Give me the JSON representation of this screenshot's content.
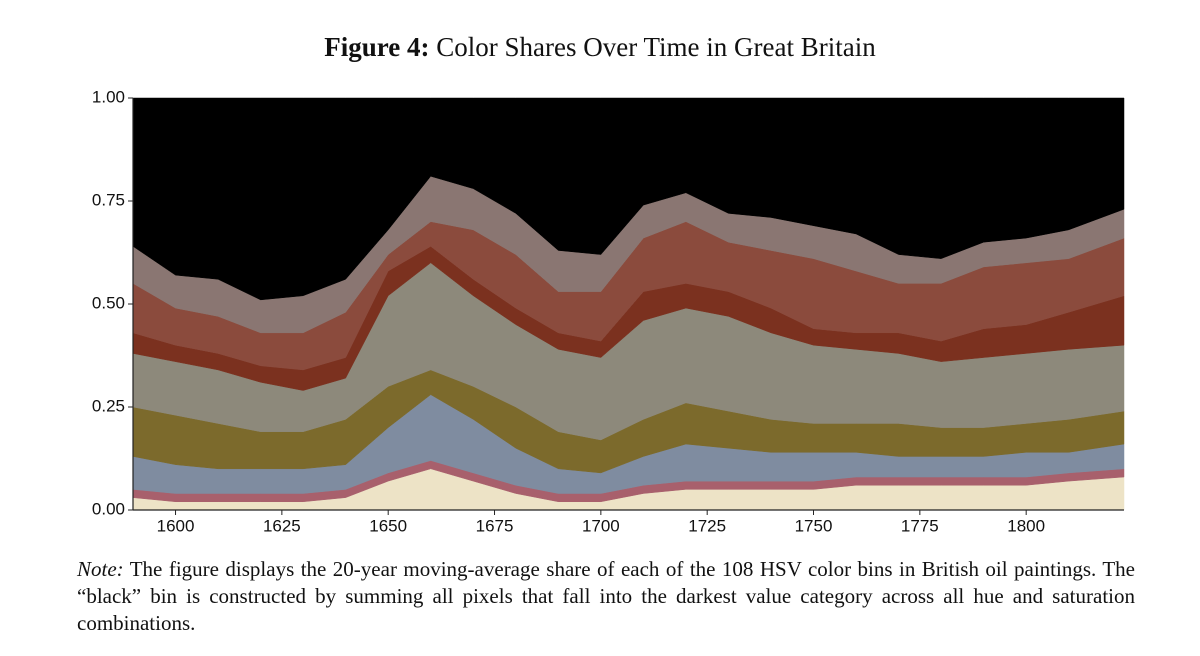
{
  "chart_data": {
    "type": "stacked_area",
    "title_label": "Figure 4:",
    "title": "Color Shares Over Time in Great Britain",
    "x": [
      1590,
      1600,
      1610,
      1620,
      1630,
      1640,
      1650,
      1660,
      1670,
      1680,
      1690,
      1700,
      1710,
      1720,
      1730,
      1740,
      1750,
      1760,
      1770,
      1780,
      1790,
      1800,
      1810,
      1823
    ],
    "xlim": [
      1590,
      1823
    ],
    "xticks": [
      1600,
      1625,
      1650,
      1675,
      1700,
      1725,
      1750,
      1775,
      1800
    ],
    "ylim": [
      0,
      1
    ],
    "yticks": [
      {
        "value": 0,
        "label": "0.00"
      },
      {
        "value": 0.25,
        "label": "0.25"
      },
      {
        "value": 0.5,
        "label": "0.50"
      },
      {
        "value": 0.75,
        "label": "0.75"
      },
      {
        "value": 1,
        "label": "1.00"
      }
    ],
    "series": [
      {
        "color": "#ede3c6",
        "values": [
          0.03,
          0.02,
          0.02,
          0.02,
          0.02,
          0.03,
          0.07,
          0.1,
          0.07,
          0.04,
          0.02,
          0.02,
          0.04,
          0.05,
          0.05,
          0.05,
          0.05,
          0.06,
          0.06,
          0.06,
          0.06,
          0.06,
          0.07,
          0.08
        ]
      },
      {
        "color": "#a8606c",
        "values": [
          0.02,
          0.02,
          0.02,
          0.02,
          0.02,
          0.02,
          0.02,
          0.02,
          0.02,
          0.02,
          0.02,
          0.02,
          0.02,
          0.02,
          0.02,
          0.02,
          0.02,
          0.02,
          0.02,
          0.02,
          0.02,
          0.02,
          0.02,
          0.02
        ]
      },
      {
        "color": "#7f8ca0",
        "values": [
          0.08,
          0.07,
          0.06,
          0.06,
          0.06,
          0.06,
          0.11,
          0.16,
          0.13,
          0.09,
          0.06,
          0.05,
          0.07,
          0.09,
          0.08,
          0.07,
          0.07,
          0.06,
          0.05,
          0.05,
          0.05,
          0.06,
          0.05,
          0.06
        ]
      },
      {
        "color": "#7c6a2c",
        "values": [
          0.12,
          0.12,
          0.11,
          0.09,
          0.09,
          0.11,
          0.1,
          0.06,
          0.08,
          0.1,
          0.09,
          0.08,
          0.09,
          0.1,
          0.09,
          0.08,
          0.07,
          0.07,
          0.08,
          0.07,
          0.07,
          0.07,
          0.08,
          0.08
        ]
      },
      {
        "color": "#8d897b",
        "values": [
          0.13,
          0.13,
          0.13,
          0.12,
          0.1,
          0.1,
          0.22,
          0.26,
          0.22,
          0.2,
          0.2,
          0.2,
          0.24,
          0.23,
          0.23,
          0.21,
          0.19,
          0.18,
          0.17,
          0.16,
          0.17,
          0.17,
          0.17,
          0.16
        ]
      },
      {
        "color": "#7b311f",
        "values": [
          0.05,
          0.04,
          0.04,
          0.04,
          0.05,
          0.05,
          0.06,
          0.04,
          0.04,
          0.04,
          0.04,
          0.04,
          0.07,
          0.06,
          0.06,
          0.06,
          0.04,
          0.04,
          0.05,
          0.05,
          0.07,
          0.07,
          0.09,
          0.12
        ]
      },
      {
        "color": "#8b4b3d",
        "values": [
          0.12,
          0.09,
          0.09,
          0.08,
          0.09,
          0.11,
          0.04,
          0.06,
          0.12,
          0.13,
          0.1,
          0.12,
          0.13,
          0.15,
          0.12,
          0.14,
          0.17,
          0.15,
          0.12,
          0.14,
          0.15,
          0.15,
          0.13,
          0.14
        ]
      },
      {
        "color": "#8a7672",
        "values": [
          0.09,
          0.08,
          0.09,
          0.08,
          0.09,
          0.08,
          0.06,
          0.11,
          0.1,
          0.1,
          0.1,
          0.09,
          0.08,
          0.07,
          0.07,
          0.08,
          0.08,
          0.09,
          0.07,
          0.06,
          0.06,
          0.06,
          0.07,
          0.07
        ]
      },
      {
        "color": "#000000",
        "values": [
          0.36,
          0.43,
          0.44,
          0.49,
          0.48,
          0.44,
          0.32,
          0.19,
          0.22,
          0.28,
          0.37,
          0.38,
          0.26,
          0.23,
          0.28,
          0.29,
          0.31,
          0.33,
          0.38,
          0.39,
          0.35,
          0.34,
          0.32,
          0.27
        ]
      }
    ],
    "note_label": "Note:",
    "note": "The figure displays the 20-year moving-average share of each of the 108 HSV color bins in British oil paintings. The “black” bin is constructed by summing all pixels that fall into the darkest value category across all hue and saturation combinations."
  }
}
